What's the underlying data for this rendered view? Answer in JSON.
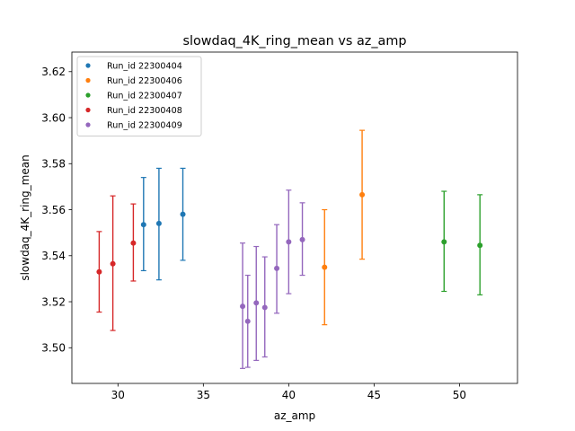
{
  "chart_data": {
    "type": "scatter",
    "title": "slowdaq_4K_ring_mean vs az_amp",
    "xlabel": "az_amp",
    "ylabel": "slowdaq_4K_ring_mean",
    "xlim": [
      27.3,
      53.4
    ],
    "ylim": [
      3.4845,
      3.6285
    ],
    "xticks": [
      30,
      35,
      40,
      45,
      50
    ],
    "yticks": [
      3.5,
      3.52,
      3.54,
      3.56,
      3.58,
      3.6,
      3.62
    ],
    "xtick_labels": [
      "30",
      "35",
      "40",
      "45",
      "50"
    ],
    "ytick_labels": [
      "3.50",
      "3.52",
      "3.54",
      "3.56",
      "3.58",
      "3.60",
      "3.62"
    ],
    "grid": false,
    "legend_position": "top-left",
    "error_bars": true,
    "series": [
      {
        "name": "Run_id 22300404",
        "color": "#1f77b4",
        "points": [
          {
            "x": 31.5,
            "y": 3.5535,
            "err_low": 3.5335,
            "err_high": 3.574
          },
          {
            "x": 32.4,
            "y": 3.554,
            "err_low": 3.5295,
            "err_high": 3.578
          },
          {
            "x": 33.8,
            "y": 3.558,
            "err_low": 3.538,
            "err_high": 3.578
          }
        ]
      },
      {
        "name": "Run_id 22300406",
        "color": "#ff7f0e",
        "points": [
          {
            "x": 42.1,
            "y": 3.535,
            "err_low": 3.51,
            "err_high": 3.56
          },
          {
            "x": 44.3,
            "y": 3.5665,
            "err_low": 3.5385,
            "err_high": 3.5945
          }
        ]
      },
      {
        "name": "Run_id 22300407",
        "color": "#2ca02c",
        "points": [
          {
            "x": 49.1,
            "y": 3.546,
            "err_low": 3.5245,
            "err_high": 3.568
          },
          {
            "x": 51.2,
            "y": 3.5445,
            "err_low": 3.523,
            "err_high": 3.5665
          }
        ]
      },
      {
        "name": "Run_id 22300408",
        "color": "#d62728",
        "points": [
          {
            "x": 28.9,
            "y": 3.533,
            "err_low": 3.5155,
            "err_high": 3.5505
          },
          {
            "x": 29.7,
            "y": 3.5365,
            "err_low": 3.5075,
            "err_high": 3.566
          },
          {
            "x": 30.9,
            "y": 3.5455,
            "err_low": 3.529,
            "err_high": 3.5625
          }
        ]
      },
      {
        "name": "Run_id 22300409",
        "color": "#9467bd",
        "points": [
          {
            "x": 37.3,
            "y": 3.518,
            "err_low": 3.491,
            "err_high": 3.5455
          },
          {
            "x": 37.6,
            "y": 3.5115,
            "err_low": 3.4915,
            "err_high": 3.5315
          },
          {
            "x": 38.1,
            "y": 3.5195,
            "err_low": 3.4945,
            "err_high": 3.544
          },
          {
            "x": 38.6,
            "y": 3.5175,
            "err_low": 3.496,
            "err_high": 3.5395
          },
          {
            "x": 39.3,
            "y": 3.5345,
            "err_low": 3.515,
            "err_high": 3.5535
          },
          {
            "x": 40.0,
            "y": 3.546,
            "err_low": 3.5235,
            "err_high": 3.5685
          },
          {
            "x": 40.8,
            "y": 3.547,
            "err_low": 3.5315,
            "err_high": 3.563
          }
        ]
      }
    ]
  }
}
